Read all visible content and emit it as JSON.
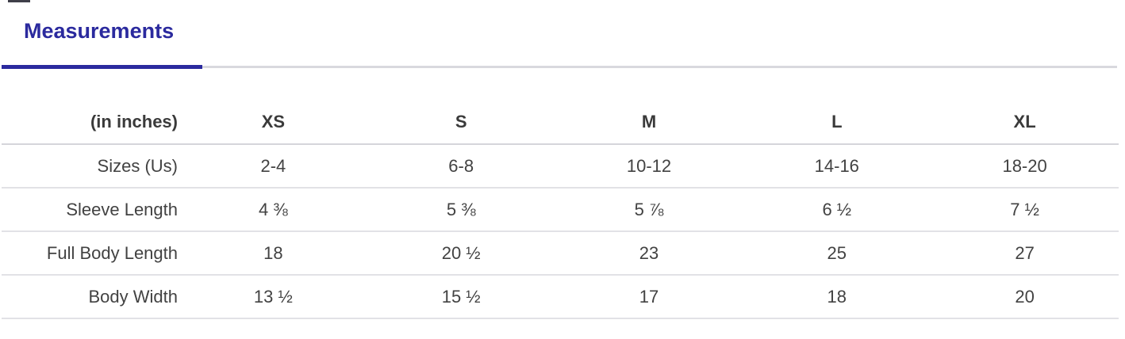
{
  "header": {
    "title": "Measurements"
  },
  "colors": {
    "accent": "#2b2a9e",
    "tab_track": "#d9d9de",
    "header_border": "#d5d5da",
    "row_border": "#e2e2e6",
    "heading_text": "#3a3a3a",
    "body_text": "#424242"
  },
  "table": {
    "unit_label": "(in inches)",
    "size_columns": [
      "XS",
      "S",
      "M",
      "L",
      "XL"
    ],
    "rows": [
      {
        "label": "Sizes (Us)",
        "values": [
          "2-4",
          "6-8",
          "10-12",
          "14-16",
          "18-20"
        ]
      },
      {
        "label": "Sleeve Length",
        "values": [
          "4 ⅜",
          "5 ⅜",
          "5 ⅞",
          "6 ½",
          "7 ½"
        ]
      },
      {
        "label": "Full Body Length",
        "values": [
          "18",
          "20 ½",
          "23",
          "25",
          "27"
        ]
      },
      {
        "label": "Body Width",
        "values": [
          "13 ½",
          "15 ½",
          "17",
          "18",
          "20"
        ]
      }
    ]
  }
}
